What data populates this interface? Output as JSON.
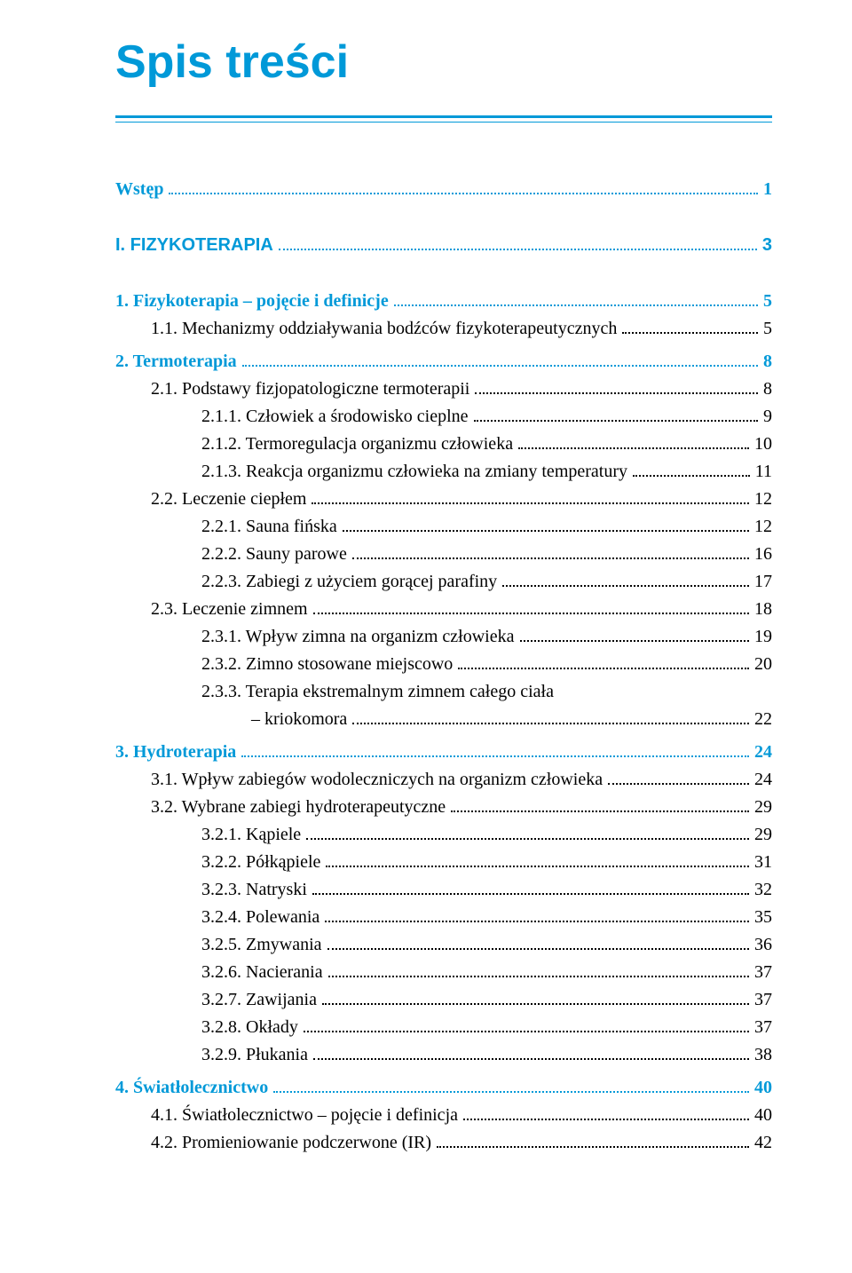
{
  "title": "Spis treści",
  "colors": {
    "accent": "#0099d8",
    "text": "#000000",
    "background": "#ffffff"
  },
  "typography": {
    "title_fontsize": 52,
    "entry_fontsize": 20,
    "body_family": "Georgia, 'Times New Roman', serif",
    "heading_family": "Arial, Helvetica, sans-serif"
  },
  "entries": [
    {
      "label": "Wstęp",
      "page": "1",
      "indent": 0,
      "bold": true,
      "blue": true,
      "gap_after": "large"
    },
    {
      "label": "I. FIZYKOTERAPIA",
      "page": "3",
      "indent": 0,
      "bold": true,
      "blue": true,
      "sans": true,
      "gap_after": "large"
    },
    {
      "label": "1. Fizykoterapia – pojęcie i definicje",
      "page": "5",
      "indent": 0,
      "bold": true,
      "blue": true
    },
    {
      "label": "1.1. Mechanizmy oddziaływania bodźców fizykoterapeutycznych",
      "page": "5",
      "indent": 1,
      "gap_after": "small"
    },
    {
      "label": "2. Termoterapia",
      "page": "8",
      "indent": 0,
      "bold": true,
      "blue": true
    },
    {
      "label": "2.1. Podstawy fizjopatologiczne termoterapii",
      "page": "8",
      "indent": 1
    },
    {
      "label": "2.1.1. Człowiek a środowisko cieplne",
      "page": "9",
      "indent": 2
    },
    {
      "label": "2.1.2. Termoregulacja organizmu człowieka",
      "page": "10",
      "indent": 2
    },
    {
      "label": "2.1.3. Reakcja organizmu człowieka na zmiany temperatury",
      "page": "11",
      "indent": 2
    },
    {
      "label": "2.2. Leczenie ciepłem",
      "page": "12",
      "indent": 1
    },
    {
      "label": "2.2.1. Sauna fińska",
      "page": "12",
      "indent": 2
    },
    {
      "label": "2.2.2. Sauny parowe",
      "page": "16",
      "indent": 2
    },
    {
      "label": "2.2.3. Zabiegi z użyciem gorącej parafiny",
      "page": "17",
      "indent": 2
    },
    {
      "label": "2.3. Leczenie zimnem",
      "page": "18",
      "indent": 1
    },
    {
      "label": "2.3.1. Wpływ zimna na organizm człowieka",
      "page": "19",
      "indent": 2
    },
    {
      "label": "2.3.2. Zimno stosowane miejscowo",
      "page": "20",
      "indent": 2
    },
    {
      "multiline": true,
      "label1": "2.3.3. Terapia ekstremalnym zimnem całego ciała",
      "label2": "– kriokomora",
      "page": "22",
      "indent": 2,
      "gap_after": "small"
    },
    {
      "label": "3. Hydroterapia",
      "page": "24",
      "indent": 0,
      "bold": true,
      "blue": true
    },
    {
      "label": "3.1. Wpływ zabiegów wodoleczniczych na organizm człowieka",
      "page": "24",
      "indent": 1
    },
    {
      "label": "3.2. Wybrane zabiegi hydroterapeutyczne",
      "page": "29",
      "indent": 1
    },
    {
      "label": "3.2.1. Kąpiele",
      "page": "29",
      "indent": 2
    },
    {
      "label": "3.2.2. Półkąpiele",
      "page": "31",
      "indent": 2
    },
    {
      "label": "3.2.3. Natryski",
      "page": "32",
      "indent": 2
    },
    {
      "label": "3.2.4. Polewania",
      "page": "35",
      "indent": 2
    },
    {
      "label": "3.2.5. Zmywania",
      "page": "36",
      "indent": 2
    },
    {
      "label": "3.2.6. Nacierania",
      "page": "37",
      "indent": 2
    },
    {
      "label": "3.2.7. Zawijania",
      "page": "37",
      "indent": 2
    },
    {
      "label": "3.2.8. Okłady",
      "page": "37",
      "indent": 2
    },
    {
      "label": "3.2.9. Płukania",
      "page": "38",
      "indent": 2,
      "gap_after": "small"
    },
    {
      "label": "4. Światłolecznictwo",
      "page": "40",
      "indent": 0,
      "bold": true,
      "blue": true
    },
    {
      "label": "4.1. Światłolecznictwo – pojęcie i definicja",
      "page": "40",
      "indent": 1
    },
    {
      "label": "4.2. Promieniowanie podczerwone (IR)",
      "page": "42",
      "indent": 1
    }
  ]
}
